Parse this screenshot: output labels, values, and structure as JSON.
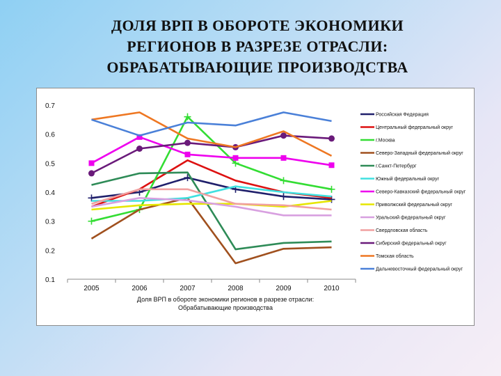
{
  "title_lines": [
    "ДОЛЯ ВРП В ОБОРОТЕ  ЭКОНОМИКИ",
    "РЕГИОНОВ В РАЗРЕЗЕ ОТРАСЛИ:",
    "ОБРАБАТЫВАЮЩИЕ ПРОИЗВОДСТВА"
  ],
  "chart_data": {
    "type": "line",
    "title": "ДОЛЯ ВРП В ОБОРОТЕ ЭКОНОМИКИ РЕГИОНОВ В РАЗРЕЗЕ ОТРАСЛИ: ОБРАБАТЫВАЮЩИЕ ПРОИЗВОДСТВА",
    "categories": [
      "2005",
      "2006",
      "2007",
      "2008",
      "2009",
      "2010"
    ],
    "xlabel": "Доля ВРП в обороте экономики регионов в разрезе отрасли: Обрабатывающие производства",
    "ylabel": "",
    "ylim": [
      0.1,
      0.7
    ],
    "yticks": [
      "0.7",
      "0.6",
      "0.5",
      "0.4",
      "0.3",
      "0.2",
      "0.1"
    ],
    "grid": false,
    "legend_position": "right",
    "series": [
      {
        "name": "Российская Федерация",
        "color": "#1f1f6b",
        "marker": "plus",
        "values": [
          0.38,
          0.4,
          0.45,
          0.41,
          0.385,
          0.375
        ]
      },
      {
        "name": "Центральный федеральный округ",
        "color": "#dd1111",
        "marker": "none",
        "values": [
          0.35,
          0.41,
          0.51,
          0.44,
          0.4,
          0.38
        ]
      },
      {
        "name": "г.Москва",
        "color": "#33dd33",
        "marker": "plus",
        "values": [
          0.3,
          0.34,
          0.66,
          0.5,
          0.44,
          0.41
        ]
      },
      {
        "name": "Северо-Западный федеральный округ",
        "color": "#a0501e",
        "marker": "none",
        "values": [
          0.24,
          0.34,
          0.38,
          0.155,
          0.205,
          0.21
        ]
      },
      {
        "name": "г.Санкт-Петербург",
        "color": "#2e8b57",
        "marker": "none",
        "values": [
          0.425,
          0.465,
          0.468,
          0.203,
          0.225,
          0.23
        ]
      },
      {
        "name": "Южный федеральный округ",
        "color": "#40e0e0",
        "marker": "none",
        "values": [
          0.37,
          0.37,
          0.38,
          0.42,
          0.4,
          0.385
        ]
      },
      {
        "name": "Северо-Кавказский федеральный округ",
        "color": "#ee00ee",
        "marker": "square",
        "values": [
          0.5,
          0.59,
          0.53,
          0.518,
          0.518,
          0.493
        ]
      },
      {
        "name": "Приволжский федеральный округ",
        "color": "#e6e600",
        "marker": "none",
        "values": [
          0.34,
          0.355,
          0.36,
          0.36,
          0.35,
          0.37
        ]
      },
      {
        "name": "Уральский федеральный округ",
        "color": "#d8a0e0",
        "marker": "none",
        "values": [
          0.35,
          0.38,
          0.372,
          0.35,
          0.32,
          0.32
        ]
      },
      {
        "name": "Свердловская область",
        "color": "#f0a0a0",
        "marker": "none",
        "values": [
          0.36,
          0.41,
          0.41,
          0.36,
          0.355,
          0.34
        ]
      },
      {
        "name": "Сибирский федеральный округ",
        "color": "#6a1a7a",
        "marker": "circle",
        "values": [
          0.465,
          0.55,
          0.57,
          0.555,
          0.595,
          0.585
        ]
      },
      {
        "name": "Томская область",
        "color": "#ee7722",
        "marker": "none",
        "values": [
          0.65,
          0.675,
          0.585,
          0.555,
          0.61,
          0.525
        ]
      },
      {
        "name": "Дальневосточный федеральный округ",
        "color": "#4a80d8",
        "marker": "none",
        "values": [
          0.65,
          0.595,
          0.64,
          0.63,
          0.675,
          0.645
        ]
      }
    ]
  }
}
